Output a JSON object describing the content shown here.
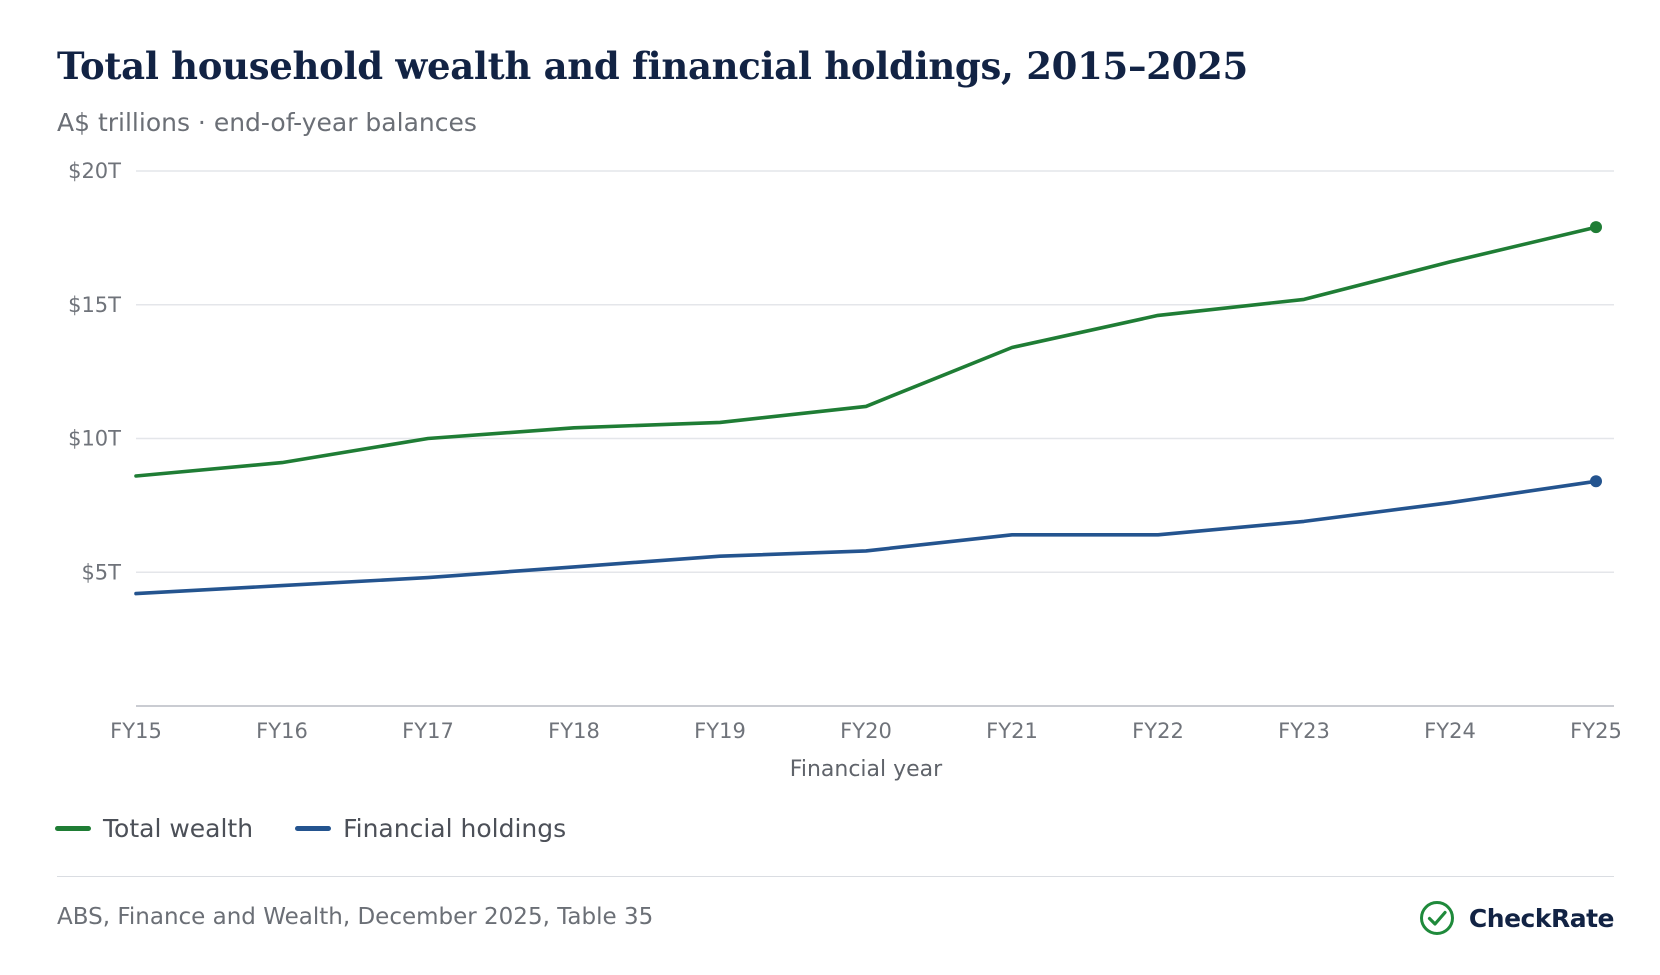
{
  "chart_data": {
    "type": "line",
    "title": "Total household wealth and financial holdings, 2015–2025",
    "subtitle": "A$ trillions · end-of-year balances",
    "xlabel": "Financial year",
    "ylabel": "",
    "categories": [
      "FY15",
      "FY16",
      "FY17",
      "FY18",
      "FY19",
      "FY20",
      "FY21",
      "FY22",
      "FY23",
      "FY24",
      "FY25"
    ],
    "y_ticks": [
      {
        "value": 5,
        "label": "$5T"
      },
      {
        "value": 10,
        "label": "$10T"
      },
      {
        "value": 15,
        "label": "$15T"
      },
      {
        "value": 20,
        "label": "$20T"
      }
    ],
    "ylim": [
      0,
      20
    ],
    "grid": true,
    "legend_position": "bottom-left",
    "series": [
      {
        "name": "Total wealth",
        "color": "#1f7d35",
        "values": [
          8.6,
          9.1,
          10.0,
          10.4,
          10.6,
          11.2,
          13.4,
          14.6,
          15.2,
          16.6,
          17.9
        ]
      },
      {
        "name": "Financial holdings",
        "color": "#24548f",
        "values": [
          4.2,
          4.5,
          4.8,
          5.2,
          5.6,
          5.8,
          6.4,
          6.4,
          6.9,
          7.6,
          8.4
        ]
      }
    ]
  },
  "footer": {
    "source": "ABS, Finance and Wealth, December 2025, Table 35",
    "brand": "CheckRate",
    "brand_icon": "check-circle-icon",
    "brand_color": "#1f8a3b"
  }
}
